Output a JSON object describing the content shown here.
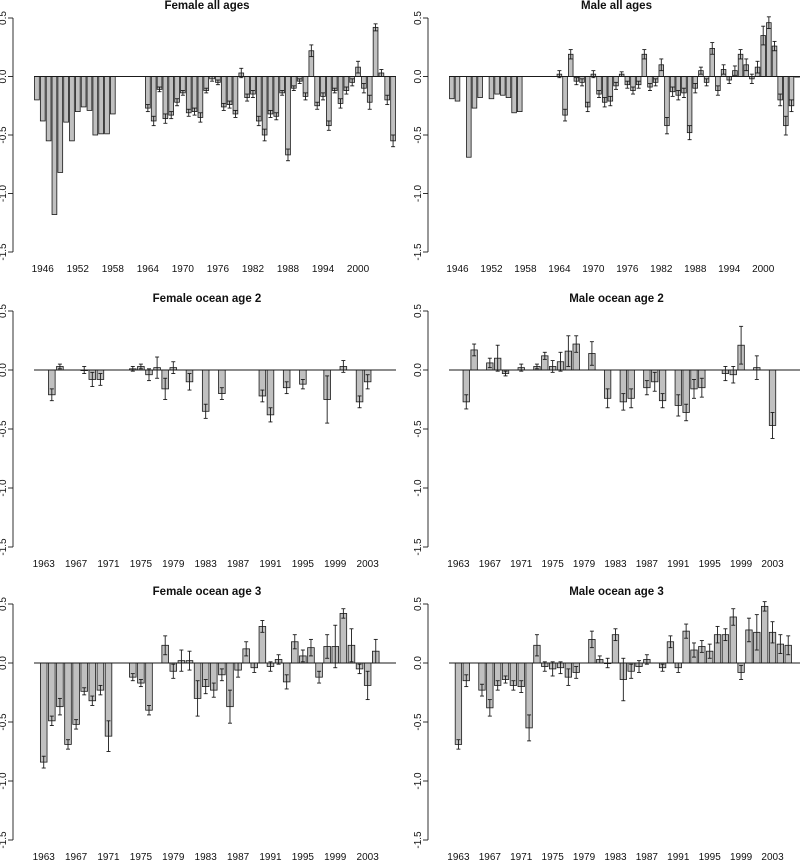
{
  "figure": {
    "colors": {
      "bar_fill": "#c0c0c0",
      "bar_edge": "#1a1a1a",
      "background": "#ffffff"
    }
  },
  "chart_data": [
    {
      "type": "bar",
      "title": "Female all ages",
      "xlabel": "",
      "ylabel": "",
      "ylim": [
        -1.5,
        0.5
      ],
      "yticks": [
        "0.5",
        "0.0",
        "-0.5",
        "-1.0",
        "-1.5"
      ],
      "xlim": [
        1944.5,
        2006.5
      ],
      "xticks": [
        "1946",
        "1952",
        "1958",
        "1964",
        "1970",
        "1976",
        "1982",
        "1988",
        "1994",
        "2000"
      ],
      "error_bars": true,
      "grid": false,
      "x": [
        1945,
        1946,
        1947,
        1948,
        1949,
        1950,
        1951,
        1952,
        1953,
        1954,
        1955,
        1956,
        1957,
        1958,
        1959,
        1960,
        1961,
        1962,
        1963,
        1964,
        1965,
        1966,
        1967,
        1968,
        1969,
        1970,
        1971,
        1972,
        1973,
        1974,
        1975,
        1976,
        1977,
        1978,
        1979,
        1980,
        1981,
        1982,
        1983,
        1984,
        1985,
        1986,
        1987,
        1988,
        1989,
        1990,
        1991,
        1992,
        1993,
        1994,
        1995,
        1996,
        1997,
        1998,
        1999,
        2000,
        2001,
        2002,
        2003,
        2004,
        2005,
        2006
      ],
      "values": [
        -0.2,
        -0.38,
        -0.55,
        -1.18,
        -0.82,
        -0.39,
        -0.55,
        -0.3,
        -0.26,
        -0.29,
        -0.5,
        -0.49,
        -0.49,
        -0.32,
        null,
        null,
        null,
        null,
        null,
        -0.27,
        -0.38,
        -0.11,
        -0.36,
        -0.33,
        -0.22,
        -0.14,
        -0.31,
        -0.3,
        -0.35,
        -0.12,
        -0.02,
        -0.05,
        -0.26,
        -0.24,
        -0.32,
        0.03,
        -0.18,
        -0.15,
        -0.38,
        -0.5,
        -0.32,
        -0.34,
        -0.14,
        -0.67,
        -0.1,
        -0.04,
        -0.17,
        0.22,
        -0.25,
        -0.17,
        -0.42,
        -0.12,
        -0.23,
        -0.12,
        -0.05,
        0.08,
        -0.1,
        -0.22,
        0.42,
        0.03,
        -0.2,
        -0.55
      ],
      "errors": [
        0,
        0,
        0,
        0,
        0,
        0,
        0,
        0,
        0,
        0,
        0,
        0,
        0,
        0,
        null,
        null,
        null,
        null,
        null,
        0.03,
        0.04,
        0.02,
        0.04,
        0.03,
        0.03,
        0.02,
        0.03,
        0.03,
        0.04,
        0.02,
        0.02,
        0.02,
        0.03,
        0.03,
        0.03,
        0.04,
        0.03,
        0.03,
        0.04,
        0.05,
        0.03,
        0.03,
        0.02,
        0.05,
        0.02,
        0.02,
        0.03,
        0.05,
        0.03,
        0.03,
        0.04,
        0.02,
        0.04,
        0.03,
        0.03,
        0.05,
        0.04,
        0.06,
        0.03,
        0.03,
        0.04,
        0.05
      ]
    },
    {
      "type": "bar",
      "title": "Male all ages",
      "xlabel": "",
      "ylabel": "",
      "ylim": [
        -1.5,
        0.5
      ],
      "yticks": [
        "0.5",
        "0.0",
        "-0.5",
        "-1.0",
        "-1.5"
      ],
      "xlim": [
        1944.5,
        2006.5
      ],
      "xticks": [
        "1946",
        "1952",
        "1958",
        "1964",
        "1970",
        "1976",
        "1982",
        "1988",
        "1994",
        "2000"
      ],
      "error_bars": true,
      "grid": false,
      "x": [
        1945,
        1946,
        1947,
        1948,
        1949,
        1950,
        1951,
        1952,
        1953,
        1954,
        1955,
        1956,
        1957,
        1958,
        1959,
        1960,
        1961,
        1962,
        1963,
        1964,
        1965,
        1966,
        1967,
        1968,
        1969,
        1970,
        1971,
        1972,
        1973,
        1974,
        1975,
        1976,
        1977,
        1978,
        1979,
        1980,
        1981,
        1982,
        1983,
        1984,
        1985,
        1986,
        1987,
        1988,
        1989,
        1990,
        1991,
        1992,
        1993,
        1994,
        1995,
        1996,
        1997,
        1998,
        1999,
        2000,
        2001,
        2002,
        2003,
        2004,
        2005,
        2006
      ],
      "values": [
        -0.19,
        -0.21,
        null,
        -0.69,
        -0.27,
        -0.18,
        null,
        -0.19,
        -0.15,
        -0.16,
        -0.18,
        -0.31,
        -0.3,
        null,
        null,
        null,
        null,
        null,
        null,
        0.02,
        -0.33,
        0.19,
        -0.04,
        -0.05,
        -0.26,
        0.02,
        -0.15,
        -0.22,
        -0.21,
        -0.08,
        0.02,
        -0.07,
        -0.12,
        -0.07,
        0.19,
        -0.09,
        -0.05,
        0.1,
        -0.42,
        -0.13,
        -0.16,
        -0.14,
        -0.48,
        -0.1,
        0.05,
        -0.05,
        0.24,
        -0.12,
        0.06,
        -0.03,
        0.05,
        0.19,
        0.1,
        -0.02,
        0.08,
        0.35,
        0.46,
        0.26,
        -0.2,
        -0.42,
        -0.25,
        0.0
      ],
      "errors": [
        0,
        0,
        null,
        0,
        0,
        0,
        null,
        0,
        0,
        0,
        0,
        0,
        0,
        null,
        null,
        null,
        null,
        null,
        null,
        0.03,
        0.05,
        0.04,
        0.03,
        0.03,
        0.04,
        0.03,
        0.03,
        0.04,
        0.04,
        0.03,
        0.02,
        0.03,
        0.03,
        0.03,
        0.04,
        0.03,
        0.03,
        0.05,
        0.07,
        0.04,
        0.04,
        0.04,
        0.06,
        0.04,
        0.03,
        0.03,
        0.05,
        0.04,
        0.04,
        0.03,
        0.04,
        0.04,
        0.05,
        0.04,
        0.05,
        0.08,
        0.05,
        0.04,
        0.05,
        0.08,
        0.05,
        0
      ]
    },
    {
      "type": "bar",
      "title": "Female ocean age 2",
      "xlabel": "",
      "ylabel": "",
      "ylim": [
        -1.5,
        0.5
      ],
      "yticks": [
        "0.5",
        "0.0",
        "-0.5",
        "-1.0",
        "-1.5"
      ],
      "xlim": [
        1961.8,
        2006.5
      ],
      "xticks": [
        "1963",
        "1967",
        "1971",
        "1975",
        "1979",
        "1983",
        "1987",
        "1991",
        "1995",
        "1999",
        "2003"
      ],
      "error_bars": true,
      "grid": false,
      "x": [
        1963,
        1964,
        1965,
        1966,
        1967,
        1968,
        1969,
        1970,
        1971,
        1972,
        1973,
        1974,
        1975,
        1976,
        1977,
        1978,
        1979,
        1980,
        1981,
        1982,
        1983,
        1984,
        1985,
        1986,
        1987,
        1988,
        1989,
        1990,
        1991,
        1992,
        1993,
        1994,
        1995,
        1996,
        1997,
        1998,
        1999,
        2000,
        2001,
        2002,
        2003,
        2004,
        2005
      ],
      "values": [
        null,
        -0.21,
        0.03,
        null,
        null,
        0.0,
        -0.08,
        -0.08,
        null,
        null,
        null,
        0.01,
        0.03,
        -0.04,
        0.02,
        -0.16,
        0.02,
        null,
        -0.1,
        null,
        -0.35,
        null,
        -0.2,
        null,
        null,
        null,
        null,
        -0.22,
        -0.38,
        null,
        -0.15,
        null,
        -0.12,
        null,
        null,
        -0.25,
        null,
        0.03,
        null,
        -0.27,
        -0.1,
        null,
        null
      ],
      "errors": [
        null,
        0.05,
        0.02,
        null,
        null,
        0.03,
        0.06,
        0.05,
        null,
        null,
        null,
        0.02,
        0.02,
        0.05,
        0.09,
        0.09,
        0.05,
        null,
        0.07,
        null,
        0.06,
        null,
        0.05,
        null,
        null,
        null,
        null,
        0.05,
        0.06,
        null,
        0.05,
        null,
        0.04,
        null,
        null,
        0.2,
        null,
        0.05,
        null,
        0.05,
        0.06,
        null,
        null
      ]
    },
    {
      "type": "bar",
      "title": "Male ocean age 2",
      "xlabel": "",
      "ylabel": "",
      "ylim": [
        -1.5,
        0.5
      ],
      "yticks": [
        "0.5",
        "0.0",
        "-0.5",
        "-1.0",
        "-1.5"
      ],
      "xlim": [
        1961.8,
        2006.5
      ],
      "xticks": [
        "1963",
        "1967",
        "1971",
        "1975",
        "1979",
        "1983",
        "1987",
        "1991",
        "1995",
        "1999",
        "2003"
      ],
      "error_bars": true,
      "grid": false,
      "x": [
        1963,
        1964,
        1965,
        1966,
        1967,
        1968,
        1969,
        1970,
        1971,
        1972,
        1973,
        1974,
        1975,
        1976,
        1977,
        1978,
        1979,
        1980,
        1981,
        1982,
        1983,
        1984,
        1985,
        1986,
        1987,
        1988,
        1989,
        1990,
        1991,
        1992,
        1993,
        1994,
        1995,
        1996,
        1997,
        1998,
        1999,
        2000,
        2001,
        2002,
        2003,
        2004,
        2005
      ],
      "values": [
        null,
        -0.27,
        0.17,
        null,
        0.06,
        0.1,
        -0.03,
        null,
        0.02,
        null,
        0.03,
        0.12,
        0.03,
        0.07,
        0.16,
        0.22,
        null,
        0.14,
        null,
        -0.24,
        null,
        -0.27,
        -0.24,
        null,
        -0.15,
        -0.1,
        -0.26,
        null,
        -0.3,
        -0.36,
        -0.16,
        -0.15,
        null,
        null,
        -0.03,
        -0.04,
        0.21,
        null,
        0.02,
        null,
        -0.47,
        null,
        null
      ],
      "errors": [
        null,
        0.06,
        0.05,
        null,
        0.04,
        0.11,
        0.02,
        null,
        0.03,
        null,
        0.02,
        0.03,
        0.05,
        0.08,
        0.13,
        0.07,
        null,
        0.1,
        null,
        0.08,
        null,
        0.07,
        0.08,
        null,
        0.06,
        0.08,
        0.06,
        null,
        0.09,
        0.07,
        0.08,
        0.08,
        null,
        null,
        0.06,
        0.07,
        0.16,
        null,
        0.1,
        null,
        0.11,
        null,
        null
      ]
    },
    {
      "type": "bar",
      "title": "Female ocean age 3",
      "xlabel": "",
      "ylabel": "",
      "ylim": [
        -1.5,
        0.5
      ],
      "yticks": [
        "0.5",
        "0.0",
        "-0.5",
        "-1.0",
        "-1.5"
      ],
      "xlim": [
        1961.8,
        2006.5
      ],
      "xticks": [
        "1963",
        "1967",
        "1971",
        "1975",
        "1979",
        "1983",
        "1987",
        "1991",
        "1995",
        "1999",
        "2003"
      ],
      "error_bars": true,
      "grid": false,
      "x": [
        1963,
        1964,
        1965,
        1966,
        1967,
        1968,
        1969,
        1970,
        1971,
        1972,
        1973,
        1974,
        1975,
        1976,
        1977,
        1978,
        1979,
        1980,
        1981,
        1982,
        1983,
        1984,
        1985,
        1986,
        1987,
        1988,
        1989,
        1990,
        1991,
        1992,
        1993,
        1994,
        1995,
        1996,
        1997,
        1998,
        1999,
        2000,
        2001,
        2002,
        2003,
        2004,
        2005
      ],
      "values": [
        -0.84,
        -0.49,
        -0.37,
        -0.69,
        -0.52,
        -0.24,
        -0.32,
        -0.23,
        -0.62,
        null,
        null,
        -0.12,
        -0.17,
        -0.4,
        null,
        0.15,
        -0.07,
        0.02,
        0.02,
        -0.3,
        -0.2,
        -0.23,
        -0.1,
        -0.37,
        -0.06,
        0.12,
        -0.04,
        0.31,
        -0.03,
        0.03,
        -0.16,
        0.18,
        0.06,
        0.13,
        -0.12,
        0.14,
        0.14,
        0.42,
        0.15,
        -0.05,
        -0.19,
        0.1,
        null
      ],
      "errors": [
        0.05,
        0.04,
        0.07,
        0.04,
        0.04,
        0.03,
        0.04,
        0.04,
        0.13,
        null,
        null,
        0.03,
        0.03,
        0.04,
        null,
        0.08,
        0.06,
        0.09,
        0.08,
        0.15,
        0.06,
        0.06,
        0.05,
        0.14,
        0.06,
        0.06,
        0.04,
        0.05,
        0.04,
        0.04,
        0.06,
        0.06,
        0.05,
        0.07,
        0.05,
        0.1,
        0.18,
        0.04,
        0.14,
        0.04,
        0.12,
        0.1,
        null
      ]
    },
    {
      "type": "bar",
      "title": "Male ocean age 3",
      "xlabel": "",
      "ylabel": "",
      "ylim": [
        -1.5,
        0.5
      ],
      "yticks": [
        "0.5",
        "0.0",
        "-0.5",
        "-1.0",
        "-1.5"
      ],
      "xlim": [
        1961.8,
        2006.5
      ],
      "xticks": [
        "1963",
        "1967",
        "1971",
        "1975",
        "1979",
        "1983",
        "1987",
        "1991",
        "1995",
        "1999",
        "2003"
      ],
      "error_bars": true,
      "grid": false,
      "x": [
        1963,
        1964,
        1965,
        1966,
        1967,
        1968,
        1969,
        1970,
        1971,
        1972,
        1973,
        1974,
        1975,
        1976,
        1977,
        1978,
        1979,
        1980,
        1981,
        1982,
        1983,
        1984,
        1985,
        1986,
        1987,
        1988,
        1989,
        1990,
        1991,
        1992,
        1993,
        1994,
        1995,
        1996,
        1997,
        1998,
        1999,
        2000,
        2001,
        2002,
        2003,
        2004,
        2005
      ],
      "values": [
        -0.69,
        -0.15,
        null,
        -0.23,
        -0.38,
        -0.19,
        -0.14,
        -0.19,
        -0.2,
        -0.55,
        0.15,
        -0.03,
        -0.05,
        -0.04,
        -0.12,
        -0.08,
        null,
        0.2,
        0.03,
        0.0,
        0.24,
        -0.14,
        -0.07,
        -0.03,
        0.03,
        null,
        -0.04,
        0.18,
        -0.04,
        0.27,
        0.11,
        0.14,
        0.1,
        0.24,
        0.24,
        0.39,
        -0.08,
        0.28,
        0.26,
        0.48,
        0.26,
        0.16,
        0.15
      ],
      "errors": [
        0.04,
        0.05,
        null,
        0.05,
        0.07,
        0.04,
        0.03,
        0.04,
        0.05,
        0.11,
        0.09,
        0.04,
        0.06,
        0.05,
        0.07,
        0.05,
        null,
        0.07,
        0.03,
        0.04,
        0.05,
        0.18,
        0.06,
        0.05,
        0.04,
        null,
        0.03,
        0.05,
        0.04,
        0.06,
        0.06,
        0.05,
        0.06,
        0.07,
        0.05,
        0.07,
        0.06,
        0.1,
        0.15,
        0.04,
        0.09,
        0.08,
        0.08
      ]
    }
  ]
}
